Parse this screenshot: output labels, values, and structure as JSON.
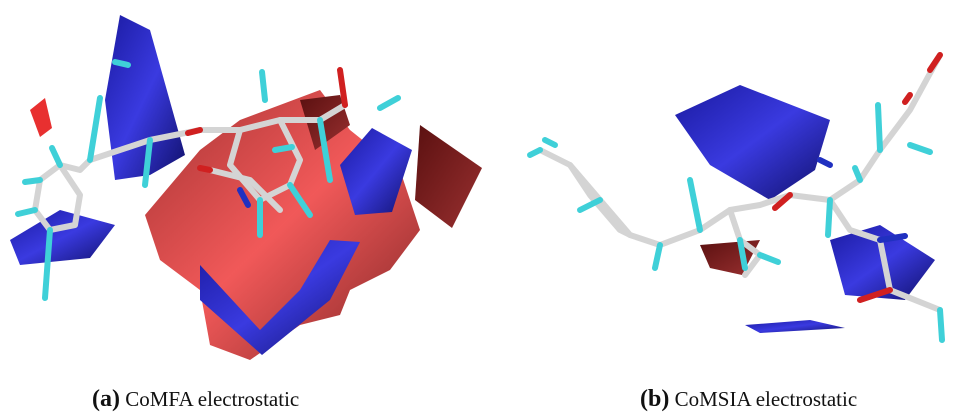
{
  "panels": [
    {
      "label": "(a)",
      "caption": "CoMFA electrostatic"
    },
    {
      "label": "(b)",
      "caption": "CoMSIA electrostatic"
    }
  ]
}
